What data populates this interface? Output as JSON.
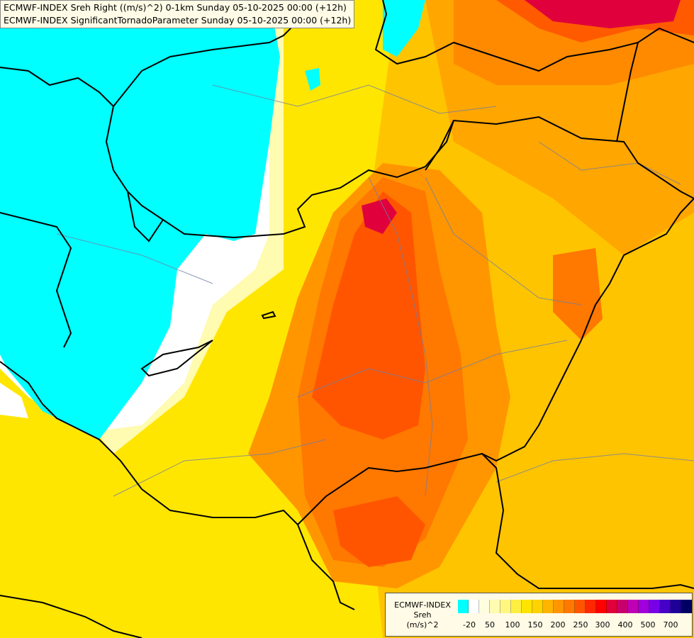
{
  "title": {
    "line1": "ECMWF-INDEX Sreh Right ((m/s)^2) 0-1km Sunday 05-10-2025 00:00 (+12h)",
    "line2": "ECMWF-INDEX SignificantTornadoParameter Sunday 05-10-2025 00:00 (+12h)"
  },
  "legend": {
    "line1": "ECMWF-INDEX",
    "line2": "Sreh",
    "line3": "(m/s)^2",
    "colors": [
      "#00ffff",
      "#ffffff",
      "#fffde0",
      "#fffbb0",
      "#fff780",
      "#ffef40",
      "#ffe400",
      "#ffd200",
      "#ffb400",
      "#ff9600",
      "#ff7800",
      "#ff5500",
      "#ff2800",
      "#ff0000",
      "#e0003c",
      "#c8006e",
      "#c000b4",
      "#a000dc",
      "#7800e6",
      "#4600c8",
      "#1e0096",
      "#000064"
    ],
    "ticks": [
      "-20",
      "50",
      "100",
      "150",
      "200",
      "250",
      "300",
      "400",
      "500",
      "700"
    ]
  }
}
